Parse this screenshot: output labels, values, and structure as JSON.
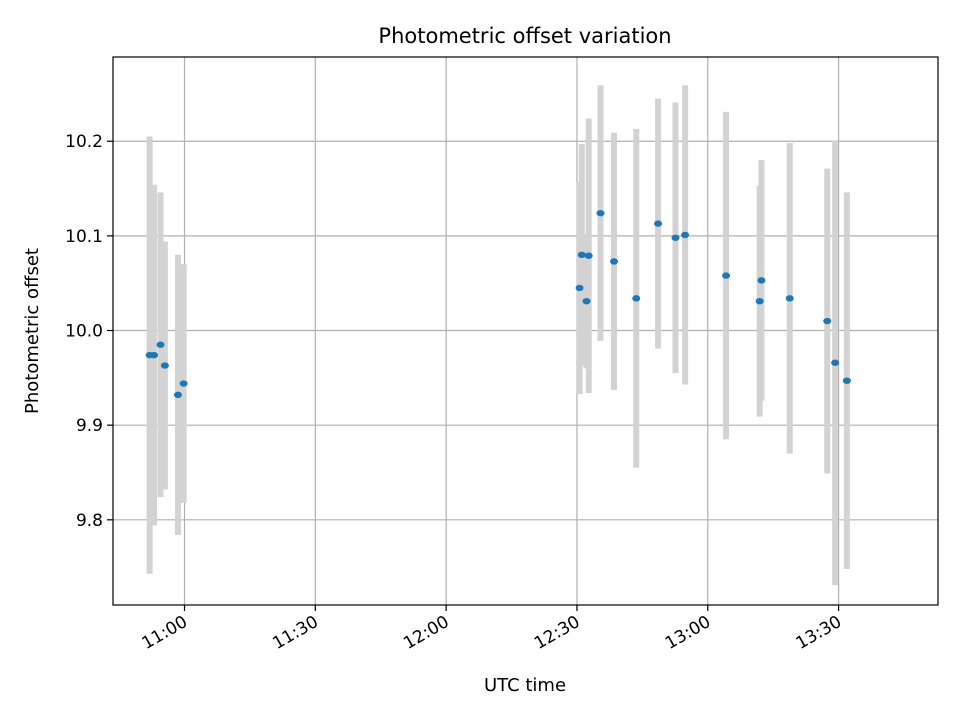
{
  "chart_data": {
    "type": "scatter",
    "title": "Photometric offset variation",
    "xlabel": "UTC time",
    "ylabel": "Photometric offset",
    "x_ticks": [
      "11:00",
      "11:30",
      "12:00",
      "12:30",
      "13:00",
      "13:30"
    ],
    "y_ticks": [
      "9.8",
      "9.9",
      "10.0",
      "10.1",
      "10.2"
    ],
    "x_tick_values_minutes": [
      660,
      690,
      720,
      750,
      780,
      810
    ],
    "y_tick_values": [
      9.8,
      9.9,
      10.0,
      10.1,
      10.2
    ],
    "xlim": [
      "10:43.6",
      "13:52.8"
    ],
    "ylim": [
      9.71,
      10.289
    ],
    "grid": true,
    "colors": {
      "point": "#1f77b4",
      "errorbar": "#d3d3d3",
      "grid": "#b0b0b0"
    },
    "points": [
      {
        "t": "10:52.0",
        "y": 9.974,
        "err": 0.231
      },
      {
        "t": "10:53.0",
        "y": 9.974,
        "err": 0.18
      },
      {
        "t": "10:54.5",
        "y": 9.985,
        "err": 0.161
      },
      {
        "t": "10:55.5",
        "y": 9.963,
        "err": 0.131
      },
      {
        "t": "10:58.5",
        "y": 9.932,
        "err": 0.148
      },
      {
        "t": "10:59.8",
        "y": 9.944,
        "err": 0.126
      },
      {
        "t": "12:30.6",
        "y": 10.045,
        "err": 0.112
      },
      {
        "t": "12:31.1",
        "y": 10.08,
        "err": 0.117
      },
      {
        "t": "12:32.2",
        "y": 10.031,
        "err": 0.071
      },
      {
        "t": "12:32.7",
        "y": 10.079,
        "err": 0.145
      },
      {
        "t": "12:35.4",
        "y": 10.124,
        "err": 0.135
      },
      {
        "t": "12:38.5",
        "y": 10.073,
        "err": 0.136
      },
      {
        "t": "12:43.6",
        "y": 10.034,
        "err": 0.179
      },
      {
        "t": "12:48.6",
        "y": 10.113,
        "err": 0.132
      },
      {
        "t": "12:52.6",
        "y": 10.098,
        "err": 0.143
      },
      {
        "t": "12:54.8",
        "y": 10.101,
        "err": 0.158
      },
      {
        "t": "13:04.2",
        "y": 10.058,
        "err": 0.173
      },
      {
        "t": "13:11.9",
        "y": 10.031,
        "err": 0.122
      },
      {
        "t": "13:12.3",
        "y": 10.053,
        "err": 0.127
      },
      {
        "t": "13:18.8",
        "y": 10.034,
        "err": 0.164
      },
      {
        "t": "13:27.4",
        "y": 10.01,
        "err": 0.161
      },
      {
        "t": "13:29.2",
        "y": 9.966,
        "err": 0.235
      },
      {
        "t": "13:31.9",
        "y": 9.947,
        "err": 0.199
      }
    ]
  }
}
